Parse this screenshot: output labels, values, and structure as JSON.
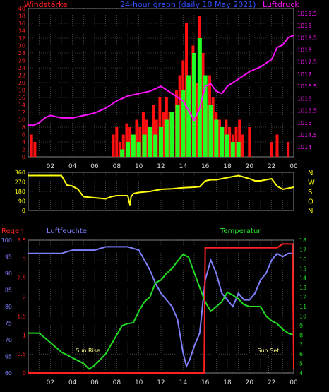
{
  "header": {
    "left": "Windstärke",
    "center": "24-hour graph (daily 10 May 2021)",
    "right": "Luftdruck"
  },
  "colors": {
    "wind_axis": "#ff2020",
    "wind_bar": "#ff1010",
    "gust_bar": "#22ff22",
    "pressure": "#ff10ff",
    "direction": "#ffff10",
    "direction_axis": "#ffff10",
    "rain": "#ff2020",
    "humidity": "#8080ff",
    "temperature": "#22dd22",
    "grid": "#666666",
    "axis_text_time": "#4060ff",
    "sun": "#ffff80"
  },
  "chart_data": [
    {
      "type": "bar",
      "title": "Windstärke / Luftdruck",
      "x_ticks": [
        "02",
        "04",
        "06",
        "08",
        "10",
        "12",
        "14",
        "16",
        "18",
        "20",
        "22",
        "00"
      ],
      "xlim_hours": [
        0,
        24
      ],
      "wind_axis": {
        "label": "Windstärke",
        "ylim": [
          0,
          40
        ],
        "ticks": [
          0,
          2,
          4,
          6,
          8,
          10,
          12,
          14,
          16,
          18,
          20,
          22,
          24,
          26,
          28,
          30,
          32,
          34,
          36,
          38,
          40
        ]
      },
      "pressure_axis": {
        "label": "Luftdruck",
        "ylim": [
          1013.6,
          1019.7
        ],
        "ticks": [
          1014,
          1014.5,
          1015,
          1015.5,
          1016,
          1016.5,
          1017,
          1017.5,
          1018,
          1018.5,
          1019,
          1019.5
        ]
      },
      "series": [
        {
          "name": "wind",
          "kind": "bar",
          "x": [
            0.3,
            0.6,
            7.7,
            8.0,
            8.3,
            8.6,
            8.9,
            9.2,
            9.5,
            9.8,
            10.1,
            10.4,
            10.7,
            11.0,
            11.3,
            11.6,
            11.9,
            12.2,
            12.5,
            12.8,
            13.1,
            13.4,
            13.7,
            14.0,
            14.3,
            14.6,
            14.9,
            15.2,
            15.5,
            15.8,
            16.1,
            16.4,
            16.7,
            17.0,
            17.3,
            17.6,
            17.9,
            18.2,
            18.5,
            18.8,
            19.1,
            19.4,
            20.0,
            22.0,
            22.5,
            23.5
          ],
          "values": [
            6,
            4,
            6,
            8,
            4,
            6,
            9,
            8,
            6,
            10,
            8,
            12,
            10,
            7,
            14,
            10,
            16,
            12,
            16,
            12,
            10,
            18,
            22,
            26,
            36,
            18,
            30,
            20,
            38,
            28,
            14,
            22,
            16,
            12,
            10,
            8,
            10,
            8,
            6,
            8,
            10,
            6,
            8,
            4,
            6,
            4
          ]
        },
        {
          "name": "gust",
          "kind": "bar",
          "x": [
            8.5,
            9.0,
            9.5,
            10.0,
            10.5,
            11.0,
            11.5,
            12.0,
            12.5,
            13.0,
            13.5,
            14.0,
            14.5,
            15.0,
            15.5,
            16.0,
            16.5,
            17.0,
            17.5,
            18.0,
            18.5,
            19.0
          ],
          "values": [
            2,
            4,
            6,
            4,
            6,
            8,
            6,
            8,
            10,
            12,
            14,
            18,
            22,
            28,
            32,
            22,
            14,
            10,
            8,
            6,
            4,
            4
          ]
        },
        {
          "name": "pressure",
          "kind": "line",
          "x": [
            0,
            0.5,
            1,
            1.5,
            2,
            3,
            4,
            5,
            6,
            7,
            8,
            9,
            10,
            11,
            12,
            13,
            14,
            14.5,
            15,
            15.5,
            16,
            16.5,
            17,
            17.5,
            18,
            19,
            20,
            21,
            22,
            22.5,
            23,
            23.5,
            24
          ],
          "values": [
            1014.9,
            1014.9,
            1015.0,
            1015.2,
            1015.3,
            1015.2,
            1015.2,
            1015.3,
            1015.4,
            1015.6,
            1015.9,
            1016.1,
            1016.2,
            1016.3,
            1016.5,
            1016.2,
            1015.9,
            1015.5,
            1015.1,
            1015.6,
            1016.5,
            1016.6,
            1016.3,
            1016.2,
            1016.5,
            1016.8,
            1017.1,
            1017.3,
            1017.6,
            1018.1,
            1018.2,
            1018.5,
            1018.6
          ]
        }
      ]
    },
    {
      "type": "line",
      "title": "Windrichtung",
      "right_labels": [
        "N",
        "W",
        "S",
        "O",
        "N"
      ],
      "ylim": [
        0,
        360
      ],
      "ticks": [
        0,
        90,
        180,
        270,
        360
      ],
      "x_ticks": [
        "02",
        "04",
        "06",
        "08",
        "10",
        "12",
        "14",
        "16",
        "18",
        "20",
        "22",
        "00"
      ],
      "series": [
        {
          "name": "direction",
          "x": [
            0,
            1,
            2,
            3,
            3.5,
            4,
            4.5,
            5,
            6,
            7,
            7.5,
            8,
            8.5,
            9,
            9.2,
            9.3,
            9.5,
            10,
            11,
            12,
            13,
            14,
            15,
            15.5,
            16,
            16.5,
            17,
            18,
            19,
            20,
            20.5,
            21,
            21.5,
            22,
            22.5,
            23,
            24
          ],
          "values": [
            330,
            330,
            330,
            330,
            240,
            230,
            200,
            130,
            120,
            110,
            130,
            140,
            140,
            140,
            50,
            130,
            160,
            170,
            180,
            200,
            205,
            215,
            220,
            225,
            280,
            290,
            290,
            310,
            330,
            300,
            280,
            280,
            290,
            300,
            230,
            200,
            220
          ]
        }
      ]
    },
    {
      "type": "line",
      "title": "Regen / Luftfeuchte / Temperatur",
      "legend": [
        "Regen",
        "Luftfeuchte",
        "Temperatur"
      ],
      "x_ticks": [
        "02",
        "04",
        "06",
        "08",
        "10",
        "12",
        "14",
        "16",
        "18",
        "20",
        "22",
        "00"
      ],
      "rain_axis": {
        "label": "Regen",
        "ylim": [
          0,
          3.5
        ],
        "ticks": [
          0,
          0.5,
          1,
          1.5,
          2,
          2.5,
          3,
          3.5
        ]
      },
      "humidity_axis": {
        "label": "Luftfeuchte",
        "ylim": [
          60,
          100
        ],
        "ticks": [
          60,
          65,
          70,
          75,
          80,
          85,
          90,
          95,
          100
        ]
      },
      "temperature_axis": {
        "label": "Temperatur",
        "ylim": [
          4,
          18
        ],
        "ticks": [
          4,
          5,
          6,
          7,
          8,
          9,
          10,
          11,
          12,
          13,
          14,
          15,
          16,
          17,
          18
        ]
      },
      "annotations": [
        {
          "text": "Sun Rise",
          "x": 5.4
        },
        {
          "text": "Sun Set",
          "x": 21.7
        }
      ],
      "series": [
        {
          "name": "Regen",
          "x": [
            0,
            15.5,
            15.9,
            16.0,
            22.5,
            23.0,
            23.5,
            23.9,
            24
          ],
          "values": [
            0,
            0,
            0,
            3.3,
            3.3,
            3.4,
            3.4,
            3.4,
            0.1
          ]
        },
        {
          "name": "Luftfeuchte",
          "x": [
            0,
            1,
            2,
            3,
            4,
            5,
            6,
            7,
            8,
            9,
            10,
            10.5,
            11,
            11.5,
            12,
            12.5,
            13,
            13.5,
            14,
            14.3,
            14.6,
            15,
            15.5,
            16,
            16.5,
            17,
            17.5,
            18,
            18.5,
            19,
            19.5,
            20,
            20.5,
            21,
            21.5,
            22,
            22.5,
            23,
            23.5,
            24
          ],
          "values": [
            96,
            96,
            96,
            96,
            97,
            97,
            97,
            98,
            98,
            98,
            97,
            94,
            91,
            87,
            84,
            82,
            80,
            76,
            66,
            62,
            64,
            68,
            72,
            88,
            94,
            90,
            84,
            82,
            80,
            84,
            82,
            82,
            84,
            88,
            90,
            94,
            96,
            95,
            96,
            96
          ]
        },
        {
          "name": "Temperatur",
          "x": [
            0,
            1,
            2,
            3,
            4,
            5,
            5.5,
            6,
            7,
            8,
            8.5,
            9,
            9.5,
            10,
            10.5,
            11,
            11.5,
            12,
            12.5,
            13,
            13.5,
            14,
            14.5,
            15,
            15.5,
            16,
            16.5,
            17,
            17.5,
            18,
            18.5,
            19,
            19.5,
            20,
            20.5,
            21,
            21.5,
            22,
            22.5,
            23,
            23.5,
            24
          ],
          "values": [
            8.2,
            8.2,
            7.2,
            6.2,
            5.6,
            5.0,
            4.4,
            4.8,
            6.0,
            8.0,
            9.0,
            9.2,
            9.3,
            10.5,
            11.5,
            12.0,
            13.5,
            13.8,
            14.5,
            15.0,
            15.8,
            16.5,
            16.2,
            14.6,
            13.0,
            11.5,
            10.5,
            11.0,
            11.5,
            12.5,
            12.2,
            11.8,
            11.2,
            11.0,
            11.0,
            11.0,
            10.0,
            9.5,
            9.2,
            8.6,
            8.2,
            8.0
          ]
        }
      ]
    }
  ]
}
